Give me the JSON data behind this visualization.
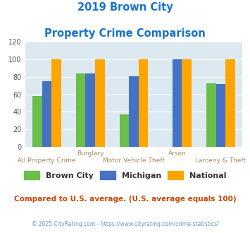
{
  "title_line1": "2019 Brown City",
  "title_line2": "Property Crime Comparison",
  "brown_city": [
    58,
    84,
    37,
    0,
    73
  ],
  "michigan": [
    75,
    84,
    81,
    100,
    72
  ],
  "national": [
    100,
    100,
    100,
    100,
    100
  ],
  "colors": {
    "brown_city": "#6abf4b",
    "michigan": "#4472c4",
    "national": "#ffa500"
  },
  "ylim": [
    0,
    120
  ],
  "yticks": [
    0,
    20,
    40,
    60,
    80,
    100,
    120
  ],
  "plot_bg": "#dce9f0",
  "title_color": "#1874cd",
  "footer_note": "Compared to U.S. average. (U.S. average equals 100)",
  "footer_note_color": "#cc4400",
  "copyright": "© 2025 CityRating.com - https://www.cityrating.com/crime-statistics/",
  "copyright_color": "#6699bb",
  "legend_labels": [
    "Brown City",
    "Michigan",
    "National"
  ],
  "top_labels": {
    "1": "Burglary",
    "3": "Arson"
  },
  "bottom_labels": {
    "0": "All Property Crime",
    "2": "Motor Vehicle Theft",
    "4": "Larceny & Theft"
  },
  "label_color": "#aa8866"
}
